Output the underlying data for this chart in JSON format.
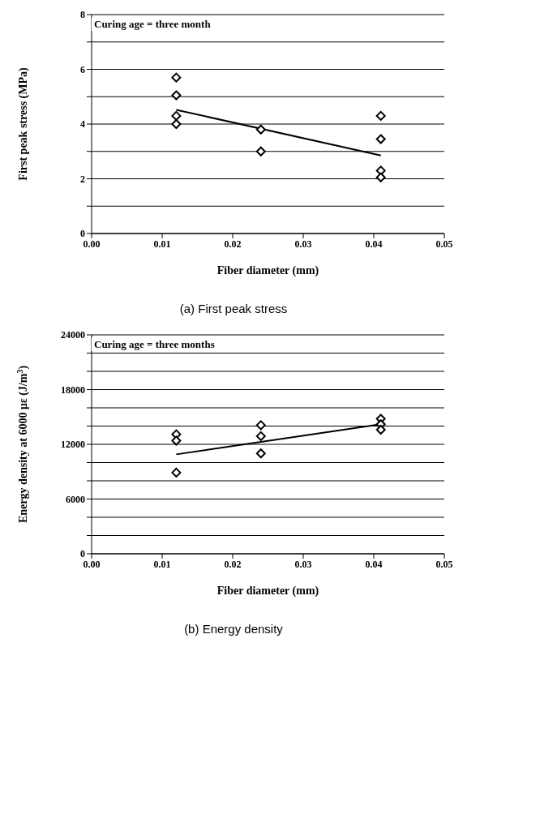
{
  "chart_data": [
    {
      "type": "scatter",
      "title": "(a) First peak stress",
      "xlabel": "Fiber diameter (mm)",
      "ylabel": "First peak stress (MPa)",
      "annotations": [
        "Curing age = three month"
      ],
      "xlim": [
        0,
        0.05
      ],
      "xticks": [
        {
          "value": 0,
          "label": "0.00"
        },
        {
          "value": 0.01,
          "label": "0.01"
        },
        {
          "value": 0.02,
          "label": "0.02"
        },
        {
          "value": 0.03,
          "label": "0.03"
        },
        {
          "value": 0.04,
          "label": "0.04"
        },
        {
          "value": 0.05,
          "label": "0.05"
        }
      ],
      "ylim": [
        0,
        8
      ],
      "yticks": [
        0,
        {
          "value": 1,
          "label": null
        },
        2,
        {
          "value": 3,
          "label": null
        },
        4,
        {
          "value": 5,
          "label": null
        },
        6,
        {
          "value": 7,
          "label": null
        },
        8
      ],
      "grid": "y",
      "legend": false,
      "marker": "diamond",
      "series": [
        {
          "color": "#000000",
          "x": [
            0.012,
            0.012,
            0.012,
            0.012,
            0.024,
            0.024,
            0.041,
            0.041,
            0.041,
            0.041
          ],
          "values": [
            5.7,
            5.05,
            4.3,
            4.0,
            3.8,
            3.0,
            4.3,
            3.45,
            2.3,
            2.05
          ]
        },
        {
          "type": "line",
          "color": "#000000",
          "marker": "none",
          "x": [
            0.012,
            0.041
          ],
          "values": [
            4.52,
            2.85
          ]
        }
      ]
    },
    {
      "type": "scatter",
      "title": "(b) Energy density",
      "xlabel": "Fiber diameter (mm)",
      "ylabel": "Energy density at 6000 με (J/m$^{3}$)",
      "annotations": [
        "Curing age = three months"
      ],
      "xlim": [
        0,
        0.05
      ],
      "xticks": [
        {
          "value": 0,
          "label": "0.00"
        },
        {
          "value": 0.01,
          "label": "0.01"
        },
        {
          "value": 0.02,
          "label": "0.02"
        },
        {
          "value": 0.03,
          "label": "0.03"
        },
        {
          "value": 0.04,
          "label": "0.04"
        },
        {
          "value": 0.05,
          "label": "0.05"
        }
      ],
      "ylim": [
        0,
        24000
      ],
      "yticks": [
        0,
        {
          "value": 2000,
          "label": null
        },
        {
          "value": 4000,
          "label": null
        },
        6000,
        {
          "value": 8000,
          "label": null
        },
        {
          "value": 10000,
          "label": null
        },
        12000,
        {
          "value": 14000,
          "label": null
        },
        {
          "value": 16000,
          "label": null
        },
        18000,
        {
          "value": 20000,
          "label": null
        },
        {
          "value": 22000,
          "label": null
        },
        24000
      ],
      "grid": "y",
      "legend": false,
      "marker": "diamond",
      "series": [
        {
          "color": "#000000",
          "x": [
            0.012,
            0.012,
            0.012,
            0.024,
            0.024,
            0.024,
            0.041,
            0.041,
            0.041
          ],
          "values": [
            13100,
            12400,
            8900,
            14100,
            12900,
            11000,
            14800,
            14200,
            13600
          ]
        },
        {
          "type": "line",
          "color": "#000000",
          "marker": "none",
          "x": [
            0.012,
            0.041
          ],
          "values": [
            10900,
            14200
          ]
        }
      ]
    }
  ]
}
